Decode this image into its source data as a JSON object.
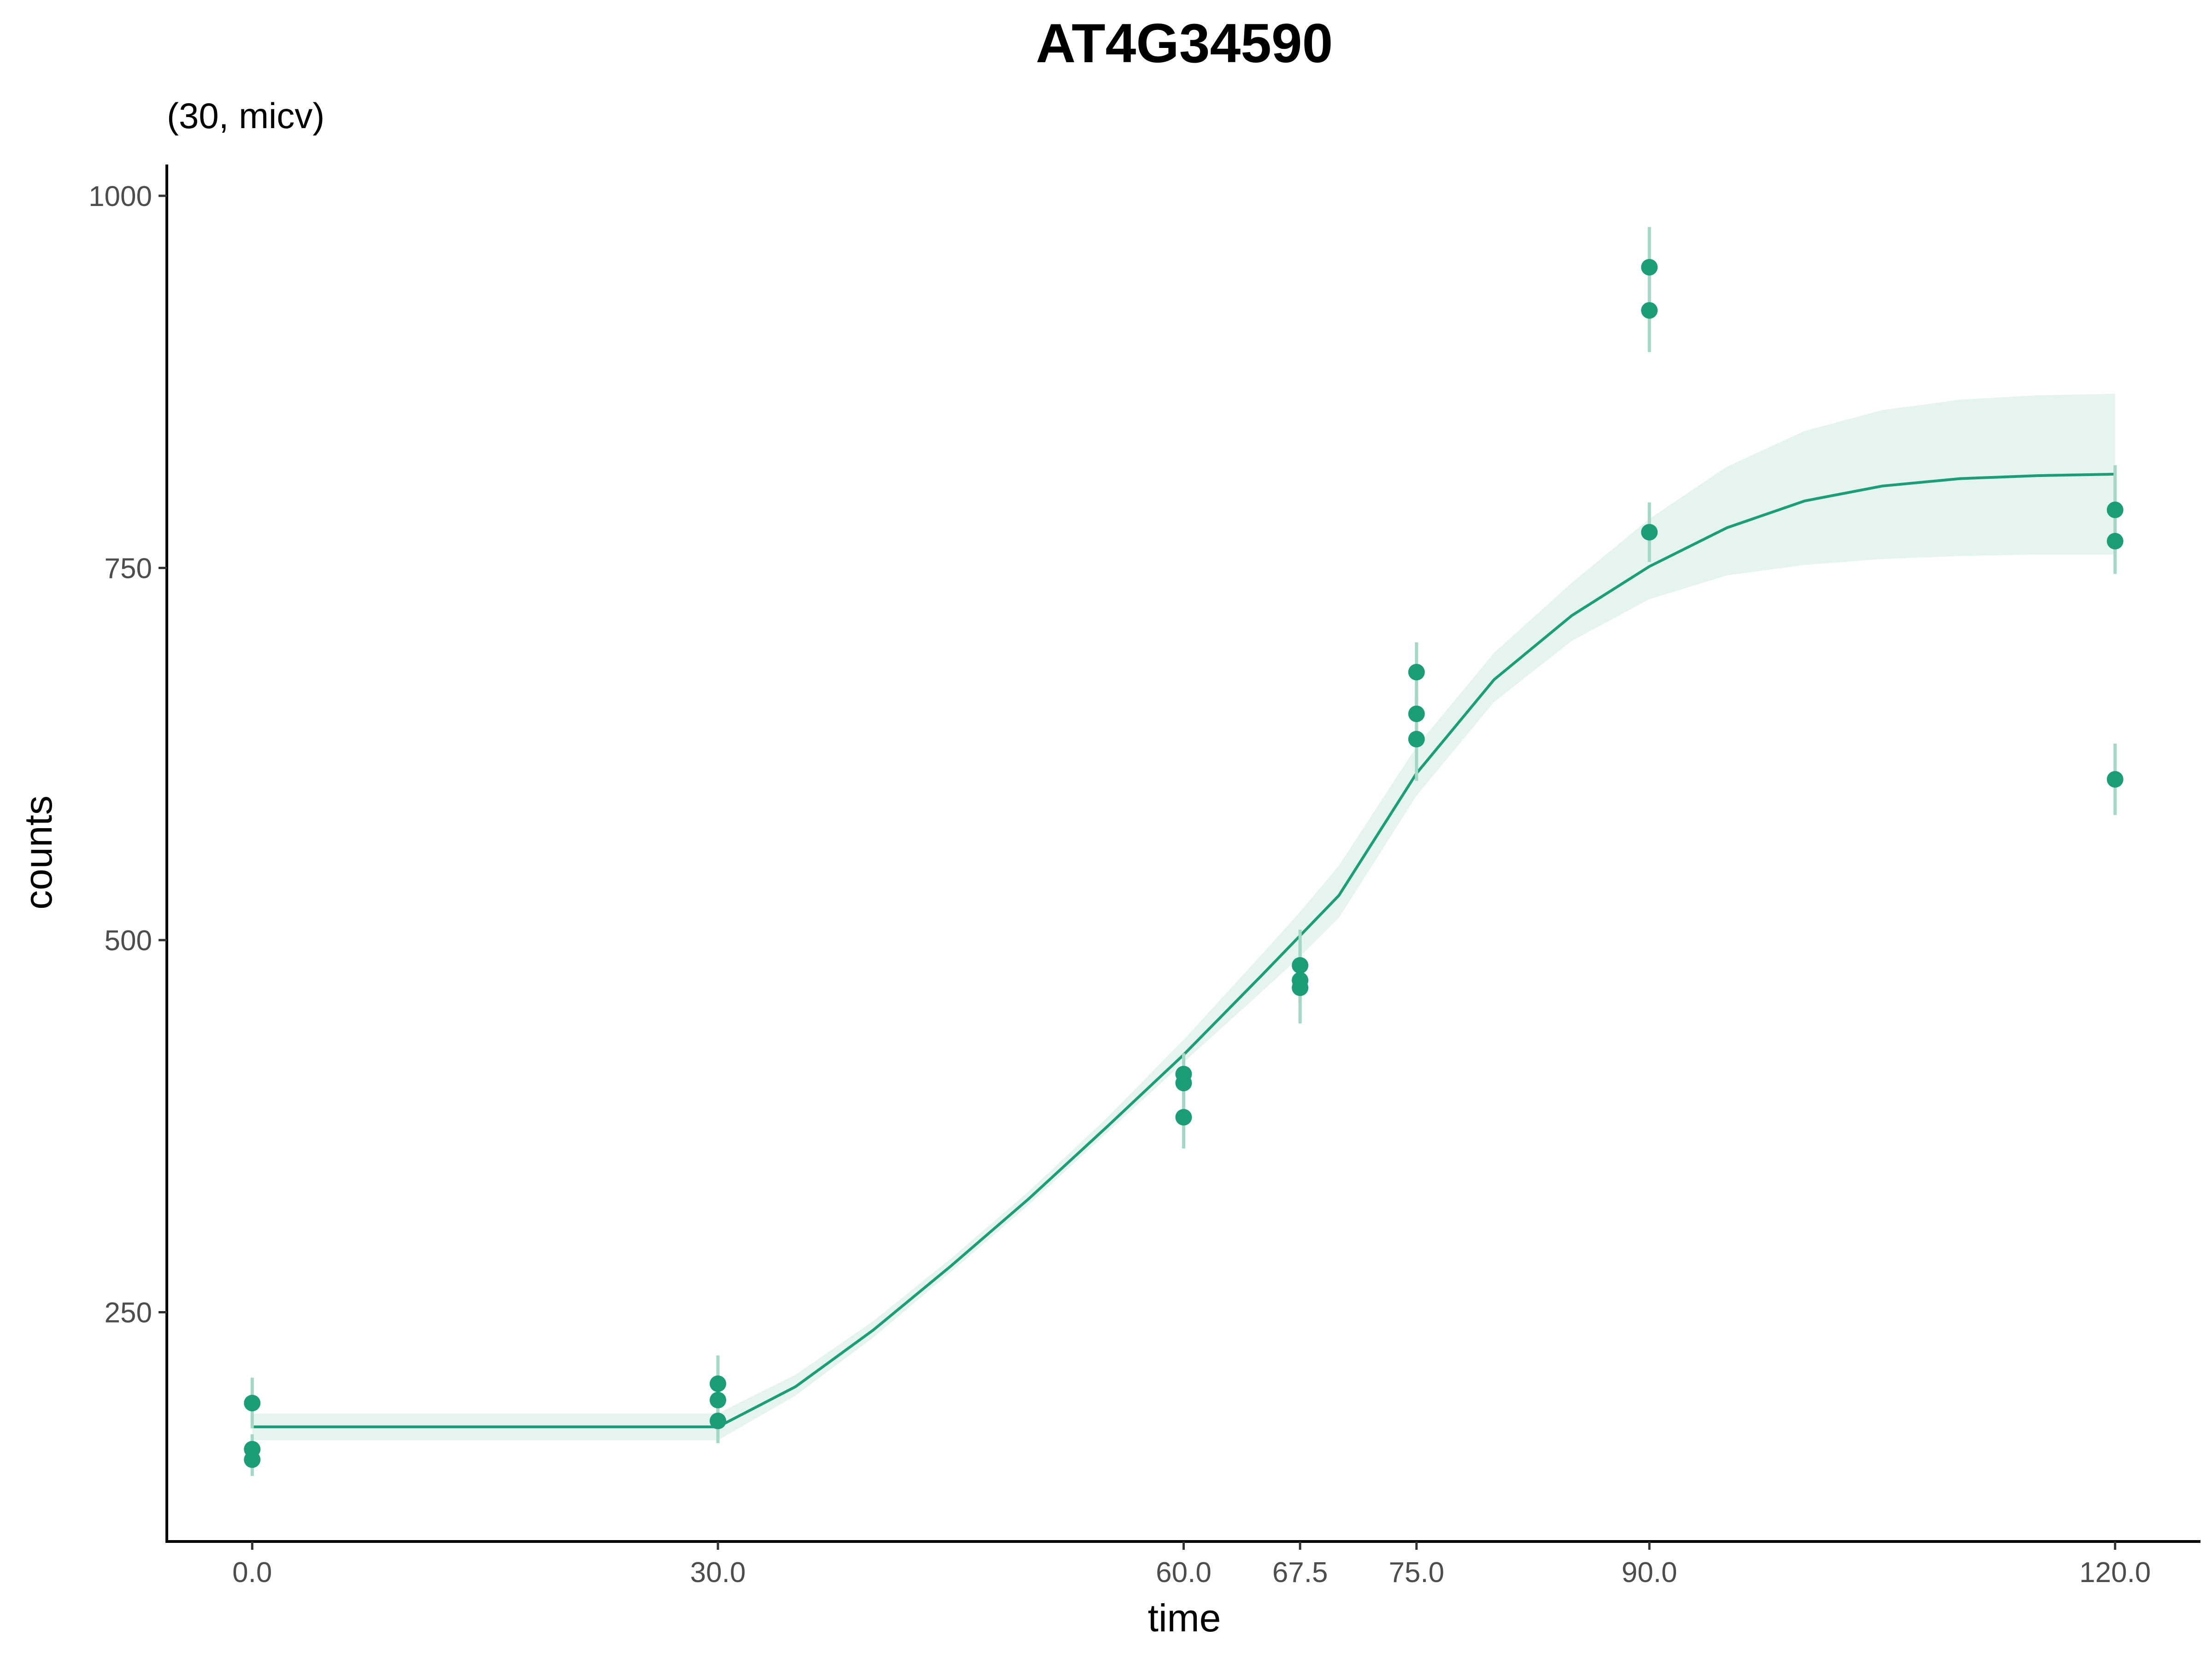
{
  "chart_data": {
    "type": "scatter",
    "title": "AT4G34590",
    "subtitle": "(30, micv)",
    "xlabel": "time",
    "ylabel": "counts",
    "xlim": [
      -5.5,
      125.5
    ],
    "ylim": [
      96,
      1021
    ],
    "x_ticks": [
      0,
      30,
      60,
      67.5,
      75,
      90,
      120
    ],
    "x_tick_labels": [
      "0.0",
      "30.0",
      "60.0",
      "67.5",
      "75.0",
      "90.0",
      "120.0"
    ],
    "y_ticks": [
      250,
      500,
      750,
      1000
    ],
    "y_tick_labels": [
      "250",
      "500",
      "750",
      "1000"
    ],
    "grid": false,
    "colors": {
      "point": "#1b9e77",
      "line": "#1b9e77",
      "band": "#e5f4ee",
      "errorbar": "#a3d8c6"
    },
    "points": [
      {
        "x": 0,
        "y": 189,
        "err": 17
      },
      {
        "x": 0,
        "y": 158,
        "err": 10
      },
      {
        "x": 0,
        "y": 151,
        "err": 11
      },
      {
        "x": 30,
        "y": 202,
        "err": 19
      },
      {
        "x": 30,
        "y": 191,
        "err": 15
      },
      {
        "x": 30,
        "y": 177,
        "err": 15
      },
      {
        "x": 60,
        "y": 410,
        "err": 14
      },
      {
        "x": 60,
        "y": 404,
        "err": 14
      },
      {
        "x": 60,
        "y": 381,
        "err": 21
      },
      {
        "x": 67.5,
        "y": 483,
        "err": 24
      },
      {
        "x": 67.5,
        "y": 473,
        "err": 24
      },
      {
        "x": 67.5,
        "y": 468,
        "err": 24
      },
      {
        "x": 75,
        "y": 680,
        "err": 20
      },
      {
        "x": 75,
        "y": 652,
        "err": 20
      },
      {
        "x": 75,
        "y": 635,
        "err": 28
      },
      {
        "x": 90,
        "y": 952,
        "err": 27
      },
      {
        "x": 90,
        "y": 923,
        "err": 28
      },
      {
        "x": 90,
        "y": 774,
        "err": 20
      },
      {
        "x": 120,
        "y": 789,
        "err": 30
      },
      {
        "x": 120,
        "y": 768,
        "err": 22
      },
      {
        "x": 120,
        "y": 608,
        "err": 24
      }
    ],
    "fit": {
      "x": [
        0,
        30,
        35,
        40,
        45,
        50,
        55,
        60,
        65,
        67.5,
        70,
        75,
        80,
        85,
        90,
        95,
        100,
        105,
        110,
        115,
        120
      ],
      "y": [
        173,
        173,
        200,
        238,
        281,
        326,
        374,
        423,
        476,
        503,
        530,
        612,
        675,
        718,
        751,
        777,
        795,
        805,
        810,
        812,
        813
      ],
      "lower": [
        164,
        164,
        194,
        233,
        277,
        322,
        370,
        418,
        465,
        489,
        515,
        597,
        660,
        701,
        729,
        745,
        752,
        756,
        758,
        759,
        759
      ],
      "upper": [
        182,
        182,
        208,
        244,
        286,
        331,
        380,
        433,
        490,
        519,
        550,
        630,
        693,
        740,
        783,
        818,
        842,
        856,
        863,
        866,
        867
      ]
    }
  }
}
